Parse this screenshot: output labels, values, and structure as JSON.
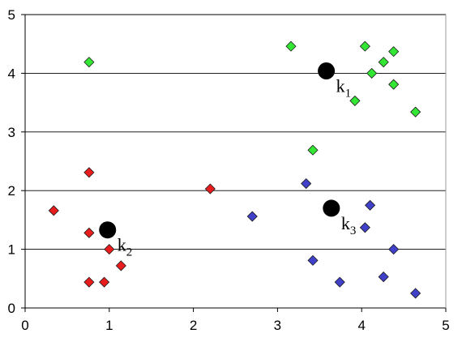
{
  "chart_data": {
    "type": "scatter",
    "title": "",
    "xlabel": "",
    "ylabel": "",
    "xlim": [
      0,
      5
    ],
    "ylim": [
      0,
      5
    ],
    "x_ticks": [
      0,
      1,
      2,
      3,
      4,
      5
    ],
    "y_ticks": [
      0,
      1,
      2,
      3,
      4,
      5
    ],
    "grid": "horizontal",
    "legend": "none",
    "marker": "diamond",
    "series": [
      {
        "color": "#33e633",
        "points": [
          {
            "x": 0.76,
            "y": 4.19
          },
          {
            "x": 3.16,
            "y": 4.46
          },
          {
            "x": 4.04,
            "y": 4.46
          },
          {
            "x": 4.38,
            "y": 4.37
          },
          {
            "x": 4.26,
            "y": 4.19
          },
          {
            "x": 4.12,
            "y": 4.0
          },
          {
            "x": 4.38,
            "y": 3.81
          },
          {
            "x": 3.92,
            "y": 3.53
          },
          {
            "x": 4.64,
            "y": 3.34
          },
          {
            "x": 3.42,
            "y": 2.69
          }
        ]
      },
      {
        "color": "#e81c1c",
        "points": [
          {
            "x": 0.76,
            "y": 2.31
          },
          {
            "x": 2.2,
            "y": 2.03
          },
          {
            "x": 0.34,
            "y": 1.66
          },
          {
            "x": 0.76,
            "y": 1.28
          },
          {
            "x": 1.0,
            "y": 1.0
          },
          {
            "x": 1.14,
            "y": 0.72
          },
          {
            "x": 0.76,
            "y": 0.44
          },
          {
            "x": 0.94,
            "y": 0.44
          }
        ]
      },
      {
        "color": "#4040c8",
        "points": [
          {
            "x": 3.34,
            "y": 2.12
          },
          {
            "x": 2.7,
            "y": 1.56
          },
          {
            "x": 4.1,
            "y": 1.75
          },
          {
            "x": 4.04,
            "y": 1.37
          },
          {
            "x": 4.38,
            "y": 1.0
          },
          {
            "x": 3.42,
            "y": 0.81
          },
          {
            "x": 3.74,
            "y": 0.44
          },
          {
            "x": 4.26,
            "y": 0.53
          },
          {
            "x": 4.64,
            "y": 0.25
          }
        ]
      }
    ],
    "centroids": [
      {
        "name": "k",
        "subscript": "1",
        "x": 3.58,
        "y": 4.04,
        "color": "#000000"
      },
      {
        "name": "k",
        "subscript": "2",
        "x": 0.98,
        "y": 1.33,
        "color": "#000000"
      },
      {
        "name": "k",
        "subscript": "3",
        "x": 3.64,
        "y": 1.7,
        "color": "#000000"
      }
    ]
  }
}
